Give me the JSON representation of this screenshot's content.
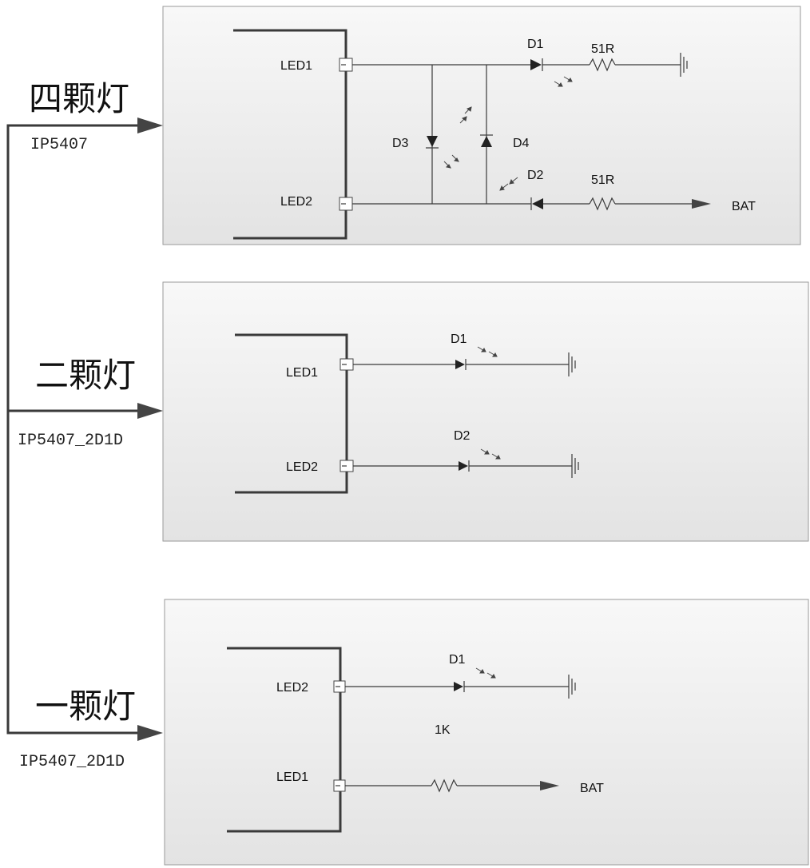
{
  "colors": {
    "panel_gradient_top": "#f8f8f8",
    "panel_gradient_bottom": "#e3e3e3",
    "wire": "#3a3a3a",
    "arrow": "#444444"
  },
  "sections": [
    {
      "title": "四颗灯",
      "chip": "IP5407",
      "labels": {
        "pin1": "LED1",
        "pin2": "LED2",
        "d1": "D1",
        "d2": "D2",
        "d3": "D3",
        "d4": "D4",
        "r1": "51R",
        "r2": "51R",
        "bat": "BAT"
      }
    },
    {
      "title": "二颗灯",
      "chip": "IP5407_2D1D",
      "labels": {
        "pin1": "LED1",
        "pin2": "LED2",
        "d1": "D1",
        "d2": "D2"
      }
    },
    {
      "title": "一颗灯",
      "chip": "IP5407_2D1D",
      "labels": {
        "pin1": "LED2",
        "pin2": "LED1",
        "d1": "D1",
        "r1": "1K",
        "bat": "BAT"
      }
    }
  ]
}
